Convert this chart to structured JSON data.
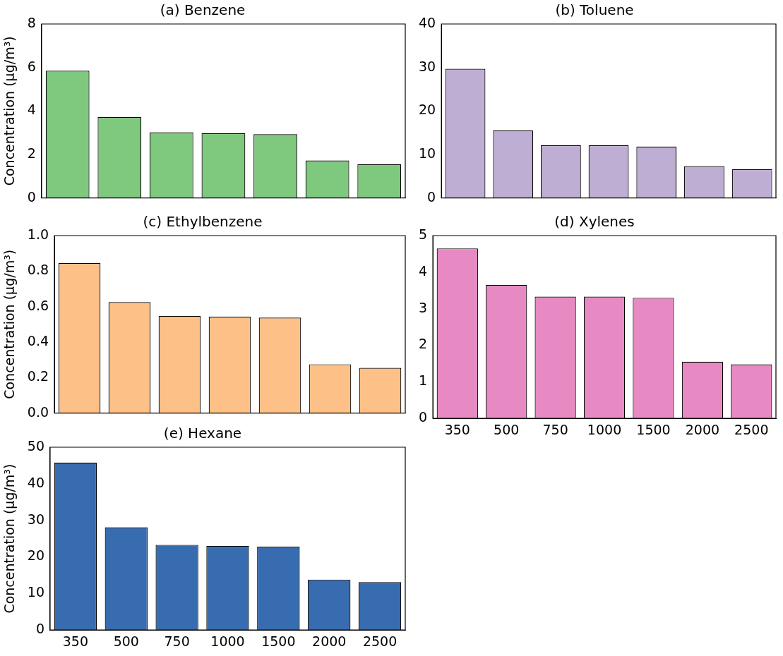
{
  "chart_data": [
    {
      "type": "bar",
      "title": "(a) Benzene",
      "ylabel": "Concentration (μg/m³)",
      "categories": [
        "350",
        "500",
        "750",
        "1000",
        "1500",
        "2000",
        "2500"
      ],
      "values": [
        5.85,
        3.72,
        3.02,
        2.98,
        2.93,
        1.72,
        1.55
      ],
      "color": "#7fc97f",
      "ylim": [
        0,
        8
      ],
      "yticks": [
        0,
        2,
        4,
        6,
        8
      ],
      "tick_labels": "y"
    },
    {
      "type": "bar",
      "title": "(b) Toluene",
      "categories": [
        "350",
        "500",
        "750",
        "1000",
        "1500",
        "2000",
        "2500"
      ],
      "values": [
        29.7,
        15.5,
        12.1,
        12.1,
        11.8,
        7.3,
        6.6
      ],
      "color": "#beaed4",
      "ylim": [
        0,
        40
      ],
      "yticks": [
        0,
        10,
        20,
        30,
        40
      ],
      "tick_labels": "y"
    },
    {
      "type": "bar",
      "title": "(c) Ethylbenzene",
      "ylabel": "Concentration (μg/m³)",
      "categories": [
        "350",
        "500",
        "750",
        "1000",
        "1500",
        "2000",
        "2500"
      ],
      "values": [
        0.845,
        0.625,
        0.548,
        0.543,
        0.538,
        0.275,
        0.255
      ],
      "color": "#fdc086",
      "ylim": [
        0,
        1
      ],
      "yticks": [
        {
          "value": 0,
          "label": "0.0"
        },
        {
          "value": 0.2,
          "label": "0.2"
        },
        {
          "value": 0.4,
          "label": "0.4"
        },
        {
          "value": 0.6,
          "label": "0.6"
        },
        {
          "value": 0.8,
          "label": "0.8"
        },
        {
          "value": 1,
          "label": "1.0"
        }
      ],
      "tick_labels": "y"
    },
    {
      "type": "bar",
      "title": "(d) Xylenes",
      "categories": [
        "350",
        "500",
        "750",
        "1000",
        "1500",
        "2000",
        "2500"
      ],
      "values": [
        4.65,
        3.65,
        3.33,
        3.33,
        3.3,
        1.55,
        1.48
      ],
      "color": "#e78ac3",
      "ylim": [
        0,
        5
      ],
      "yticks": [
        0,
        1,
        2,
        3,
        4,
        5
      ]
    },
    {
      "type": "bar",
      "title": "(e) Hexane",
      "ylabel": "Concentration (μg/m³)",
      "categories": [
        "350",
        "500",
        "750",
        "1000",
        "1500",
        "2000",
        "2500"
      ],
      "values": [
        45.8,
        28.1,
        23.3,
        23.0,
        22.8,
        13.8,
        13.1
      ],
      "color": "#386cb0",
      "ylim": [
        0,
        50
      ],
      "yticks": [
        0,
        10,
        20,
        30,
        40,
        50
      ]
    }
  ]
}
